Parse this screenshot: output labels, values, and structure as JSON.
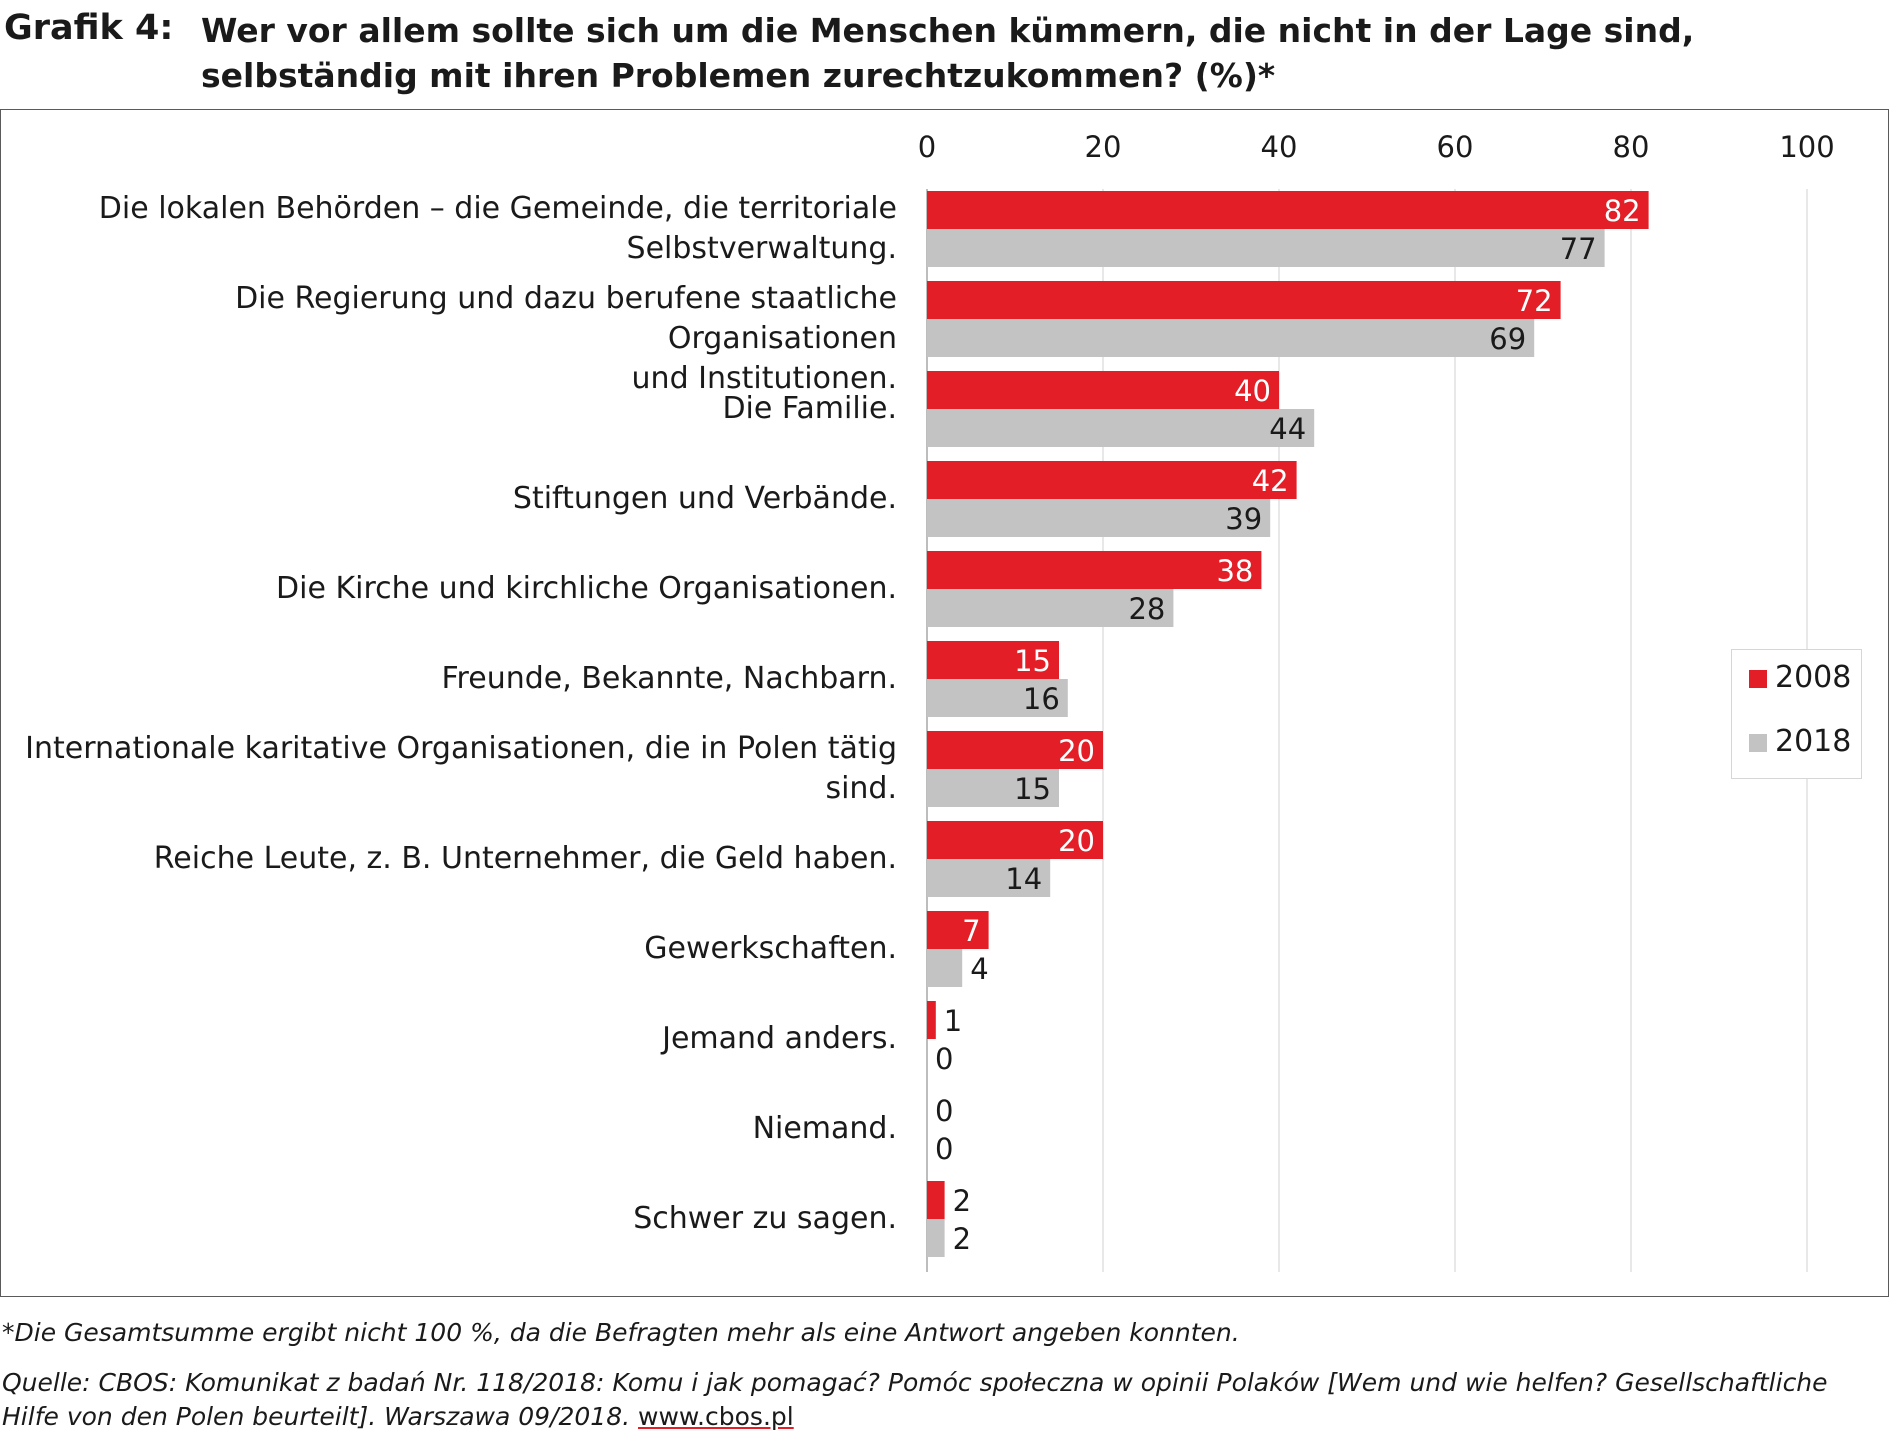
{
  "figure": {
    "label": "Grafik 4:",
    "title": "Wer vor allem sollte sich um die Menschen kümmern, die nicht in der Lage sind, selbständig mit ihren Problemen zurechtzukommen? (%)*"
  },
  "colors": {
    "series_2008": "#e31e26",
    "series_2018": "#c3c3c3",
    "grid": "#d9d9d9",
    "text": "#1a1a1a",
    "label_on_red": "#ffffff"
  },
  "chart_data": {
    "type": "bar",
    "orientation": "horizontal",
    "title": "Wer vor allem sollte sich um die Menschen kümmern, die nicht in der Lage sind, selbständig mit ihren Problemen zurechtzukommen? (%)*",
    "xlabel": "",
    "ylabel": "",
    "xlim": [
      0,
      100
    ],
    "xticks": [
      0,
      20,
      40,
      60,
      80,
      100
    ],
    "x_axis_position": "top",
    "grid": true,
    "legend_position": "right",
    "categories": [
      "Die lokalen Behörden – die Gemeinde, die territoriale Selbstverwaltung.",
      "Die Regierung und dazu berufene staatliche Organisationen und Institutionen.",
      "Die Familie.",
      "Stiftungen und Verbände.",
      "Die Kirche und kirchliche Organisationen.",
      "Freunde, Bekannte, Nachbarn.",
      "Internationale karitative Organisationen, die in Polen tätig sind.",
      "Reiche Leute, z. B. Unternehmer, die Geld haben.",
      "Gewerkschaften.",
      "Jemand anders.",
      "Niemand.",
      "Schwer zu sagen."
    ],
    "category_lines": [
      [
        "Die lokalen Behörden – die Gemeinde, die territoriale",
        "Selbstverwaltung."
      ],
      [
        "Die Regierung und dazu berufene staatliche Organisationen",
        "und Institutionen."
      ],
      [
        "Die Familie."
      ],
      [
        "Stiftungen und Verbände."
      ],
      [
        "Die Kirche und kirchliche Organisationen."
      ],
      [
        "Freunde, Bekannte, Nachbarn."
      ],
      [
        "Internationale karitative Organisationen, die in Polen tätig",
        "sind."
      ],
      [
        "Reiche Leute, z. B. Unternehmer, die Geld haben."
      ],
      [
        "Gewerkschaften."
      ],
      [
        "Jemand anders."
      ],
      [
        "Niemand."
      ],
      [
        "Schwer zu sagen."
      ]
    ],
    "series": [
      {
        "name": "2008",
        "values": [
          82,
          72,
          40,
          42,
          38,
          15,
          20,
          20,
          7,
          1,
          0,
          2
        ]
      },
      {
        "name": "2018",
        "values": [
          77,
          69,
          44,
          39,
          28,
          16,
          15,
          14,
          4,
          0,
          0,
          2
        ]
      }
    ]
  },
  "footnote": "*Die Gesamtsumme ergibt nicht 100 %, da die Befragten mehr als eine Antwort angeben konnten.",
  "source": {
    "text": "Quelle: CBOS: Komunikat z badań Nr. 118/2018: Komu i jak pomagać? Pomóc społeczna w opinii Polaków [Wem und wie helfen? Gesellschaftliche Hilfe von den Polen beurteilt]. Warszawa 09/2018. ",
    "link": "www.cbos.pl"
  }
}
